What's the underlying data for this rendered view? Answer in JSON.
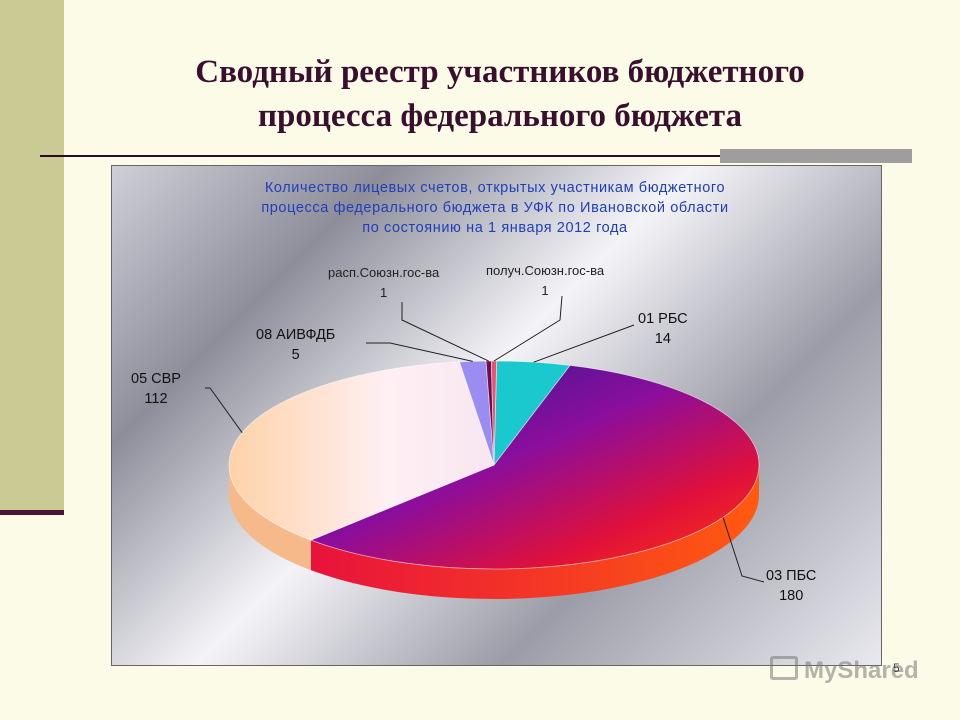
{
  "slide": {
    "title_line1": "Сводный реестр участников бюджетного",
    "title_line2": "процесса федерального бюджета",
    "page_number": "5",
    "watermark": "MyShared"
  },
  "chart_data": {
    "type": "pie",
    "title_lines": [
      "Количество лицевых счетов, открытых участникам бюджетного",
      "процесса федерального бюджета в УФК по Ивановской области",
      "по состоянию на 1 января 2012 года"
    ],
    "categories": [
      "01 РБС",
      "03 ПБС",
      "05 СВР",
      "08 АИВФДБ",
      "расп.Союзн.гос-ва",
      "получ.Союзн.гос-ва"
    ],
    "values": [
      14,
      180,
      112,
      5,
      1,
      1
    ],
    "colors": [
      "#19C9CE",
      "#B0128C",
      "#FBD8B6",
      "#9A8CF0",
      "#6A1050",
      "#F05070"
    ],
    "legend": "none"
  }
}
